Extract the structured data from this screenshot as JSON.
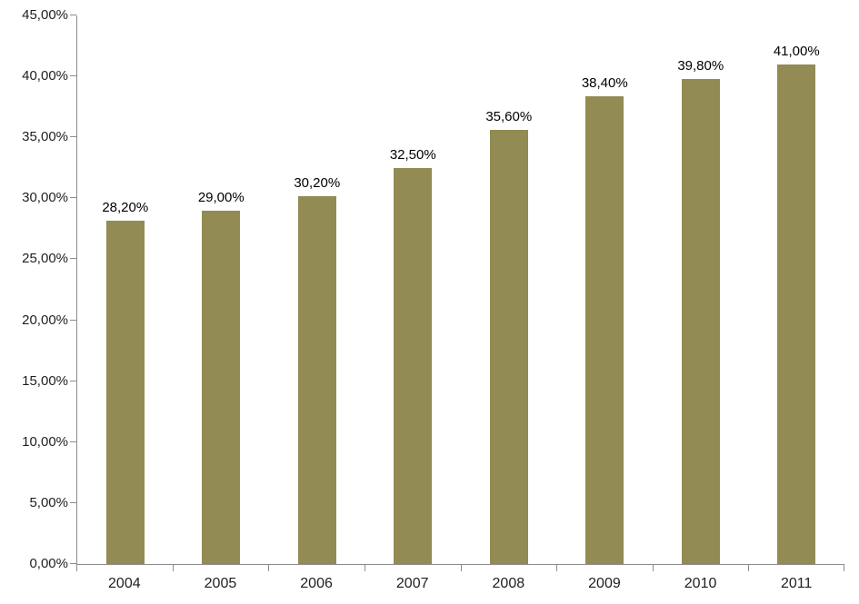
{
  "chart_data": {
    "type": "bar",
    "title": "",
    "xlabel": "",
    "ylabel": "",
    "categories": [
      "2004",
      "2005",
      "2006",
      "2007",
      "2008",
      "2009",
      "2010",
      "2011"
    ],
    "values": [
      28.2,
      29.0,
      30.2,
      32.5,
      35.6,
      38.4,
      39.8,
      41.0
    ],
    "data_labels": [
      "28,20%",
      "29,00%",
      "30,20%",
      "32,50%",
      "35,60%",
      "38,40%",
      "39,80%",
      "41,00%"
    ],
    "ylim": [
      0,
      45
    ],
    "ytick_step": 5,
    "ytick_labels": [
      "0,00%",
      "5,00%",
      "10,00%",
      "15,00%",
      "20,00%",
      "25,00%",
      "30,00%",
      "35,00%",
      "40,00%",
      "45,00%"
    ],
    "grid": false,
    "legend": false,
    "colors": {
      "bar": "#928B53",
      "axis": "#8C8C8C",
      "tick_text": "#1F1F1F",
      "data_label_text": "#000000",
      "background": "#FFFFFF"
    }
  }
}
